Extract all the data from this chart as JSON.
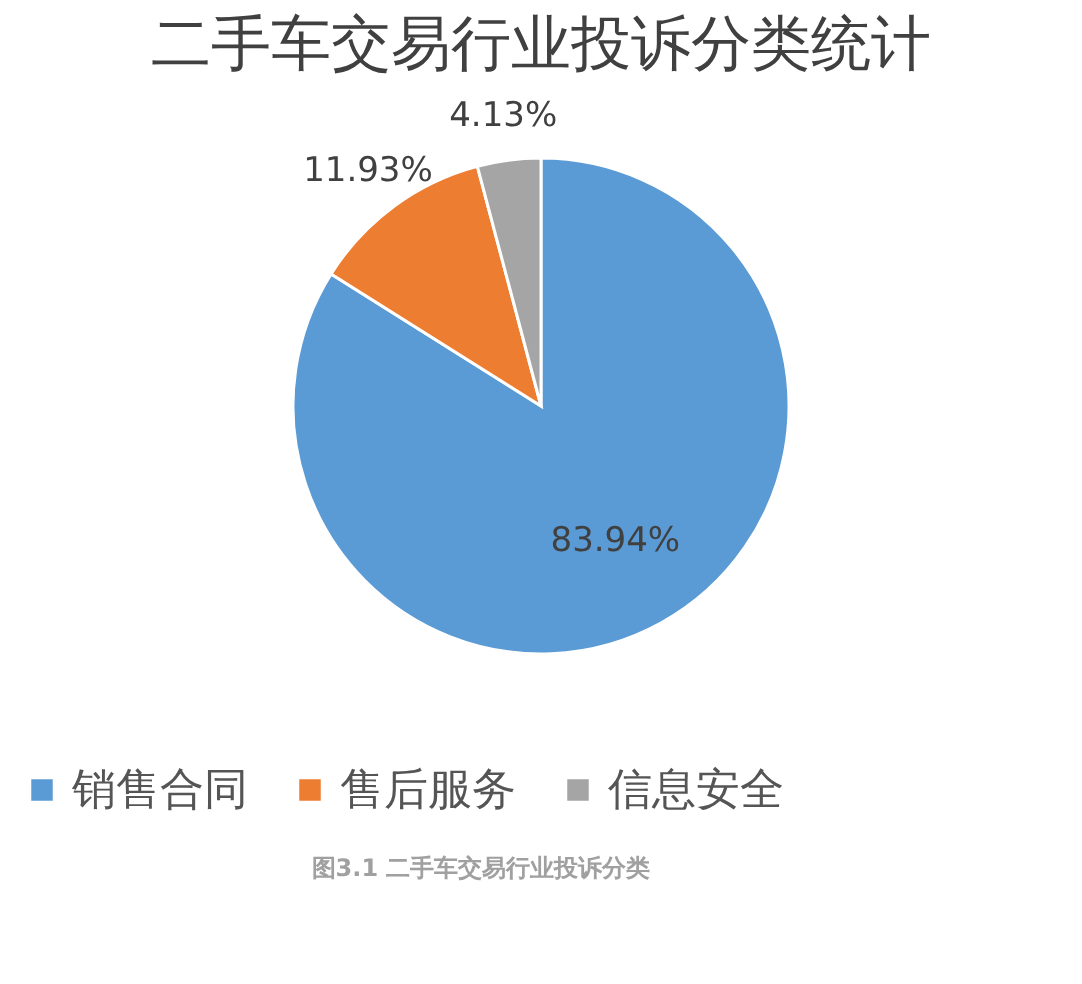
{
  "chart_data": {
    "type": "pie",
    "title": "二手车交易行业投诉分类统计",
    "categories": [
      "销售合同",
      "售后服务",
      "信息安全"
    ],
    "values": [
      83.94,
      11.93,
      4.13
    ],
    "colors": [
      "#5b9bd5",
      "#ed7d31",
      "#a5a5a5"
    ],
    "value_labels": [
      "83.94%",
      "11.93%",
      "4.13%"
    ],
    "legend": "bottom",
    "annotations": [
      "图3.1  二手车交易行业投诉分类"
    ]
  }
}
